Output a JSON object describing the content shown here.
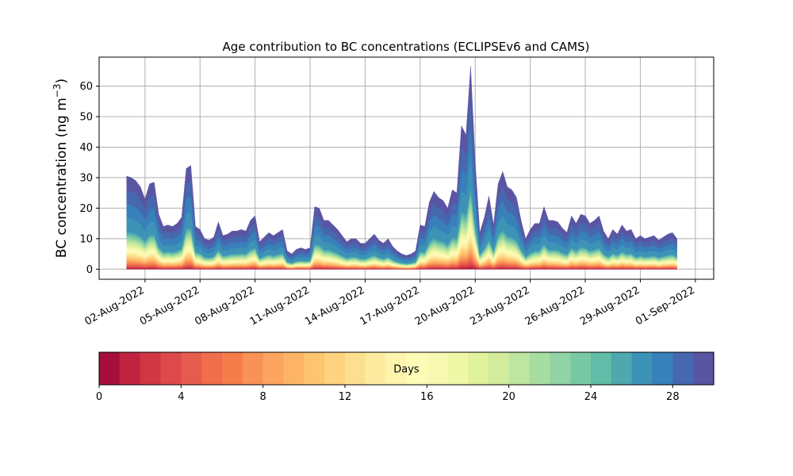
{
  "chart_data": {
    "type": "area",
    "title": "Age contribution to BC concentrations (ECLIPSEv6 and CAMS)",
    "ylabel": "BC concentration (ng m",
    "ylabel_sup": "−3",
    "ylabel_close": ")",
    "xlabel": "",
    "ylim": [
      -3.3,
      69.5
    ],
    "yticks": [
      0,
      10,
      20,
      30,
      40,
      50,
      60
    ],
    "xlim": [
      -1.5,
      32.0
    ],
    "xtick_positions": [
      1,
      4,
      7,
      10,
      13,
      16,
      19,
      22,
      25,
      28,
      31
    ],
    "xtick_labels": [
      "02-Aug-2022",
      "05-Aug-2022",
      "08-Aug-2022",
      "11-Aug-2022",
      "14-Aug-2022",
      "17-Aug-2022",
      "20-Aug-2022",
      "23-Aug-2022",
      "26-Aug-2022",
      "29-Aug-2022",
      "01-Sep-2022"
    ],
    "x_unit": "days since 01-Aug-2022",
    "grid": true,
    "series_description": "Stacked contribution by age (0-30 days); total concentration below",
    "total": {
      "x": [
        0.0,
        0.25,
        0.5,
        0.75,
        1.0,
        1.25,
        1.5,
        1.75,
        2.0,
        2.25,
        2.5,
        2.75,
        3.0,
        3.25,
        3.5,
        3.75,
        4.0,
        4.25,
        4.5,
        4.75,
        5.0,
        5.25,
        5.5,
        5.75,
        6.0,
        6.25,
        6.5,
        6.75,
        7.0,
        7.25,
        7.5,
        7.75,
        8.0,
        8.25,
        8.5,
        8.75,
        9.0,
        9.25,
        9.5,
        9.75,
        10.0,
        10.25,
        10.5,
        10.75,
        11.0,
        11.25,
        11.5,
        11.75,
        12.0,
        12.25,
        12.5,
        12.75,
        13.0,
        13.25,
        13.5,
        13.75,
        14.0,
        14.25,
        14.5,
        14.75,
        15.0,
        15.25,
        15.5,
        15.75,
        16.0,
        16.25,
        16.5,
        16.75,
        17.0,
        17.25,
        17.5,
        17.75,
        18.0,
        18.25,
        18.5,
        18.75,
        19.0,
        19.25,
        19.5,
        19.75,
        20.0,
        20.25,
        20.5,
        20.75,
        21.0,
        21.25,
        21.5,
        21.75,
        22.0,
        22.25,
        22.5,
        22.75,
        23.0,
        23.25,
        23.5,
        23.75,
        24.0,
        24.25,
        24.5,
        24.75,
        25.0,
        25.25,
        25.5,
        25.75,
        26.0,
        26.25,
        26.5,
        26.75,
        27.0,
        27.25,
        27.5,
        27.75,
        28.0,
        28.25,
        28.5,
        28.75,
        29.0,
        29.25,
        29.5,
        29.75,
        30.0
      ],
      "y": [
        30.5,
        30,
        29,
        27,
        23,
        28,
        28.5,
        18,
        14,
        14.5,
        14,
        15,
        17,
        33,
        34,
        14,
        13,
        10,
        9.5,
        10.5,
        15.5,
        11,
        11.5,
        12.5,
        12.5,
        13,
        12.5,
        16,
        17.5,
        9,
        10.5,
        12,
        11,
        12,
        13,
        6,
        5,
        6.5,
        7,
        6.5,
        7,
        20.5,
        20,
        16,
        16,
        14.5,
        13,
        11,
        9,
        10,
        10,
        8.5,
        8.5,
        10,
        11.5,
        9.5,
        8.5,
        10,
        7.5,
        6,
        5,
        4.5,
        5,
        6,
        14.5,
        14,
        22,
        25.5,
        23.5,
        22.5,
        20,
        26,
        25,
        47,
        44,
        66.5,
        35,
        12,
        17,
        24,
        14.5,
        28,
        32,
        27,
        26,
        23.5,
        16,
        10,
        13,
        15,
        15,
        20.5,
        16,
        16,
        15.5,
        13.5,
        12,
        17.5,
        15,
        18,
        17.5,
        15,
        16,
        17.5,
        12.5,
        10,
        13,
        11.5,
        14.5,
        12.5,
        13,
        10,
        11,
        10,
        10.5,
        11,
        9.5,
        10.5,
        11.5,
        12,
        10
      ]
    },
    "colorbar": {
      "label": "Days",
      "orientation": "horizontal",
      "range": [
        0,
        30
      ],
      "ticks": [
        0,
        4,
        8,
        12,
        16,
        20,
        24,
        28
      ],
      "colors": [
        "#a50f3c",
        "#c0233f",
        "#d03643",
        "#dc4a4b",
        "#e65c4c",
        "#f06e4b",
        "#f57d4b",
        "#f99257",
        "#fca560",
        "#fdb565",
        "#fec570",
        "#fed27f",
        "#fde08f",
        "#fdeca0",
        "#fff4ae",
        "#fefbb7",
        "#f7f9b2",
        "#eef7a6",
        "#e1f29c",
        "#d2ec9c",
        "#bee6a0",
        "#a8dda2",
        "#91d3a4",
        "#79c8a4",
        "#62bca7",
        "#4fa8ad",
        "#3d93b6",
        "#3780ba",
        "#4568af",
        "#5a55a3"
      ]
    }
  }
}
